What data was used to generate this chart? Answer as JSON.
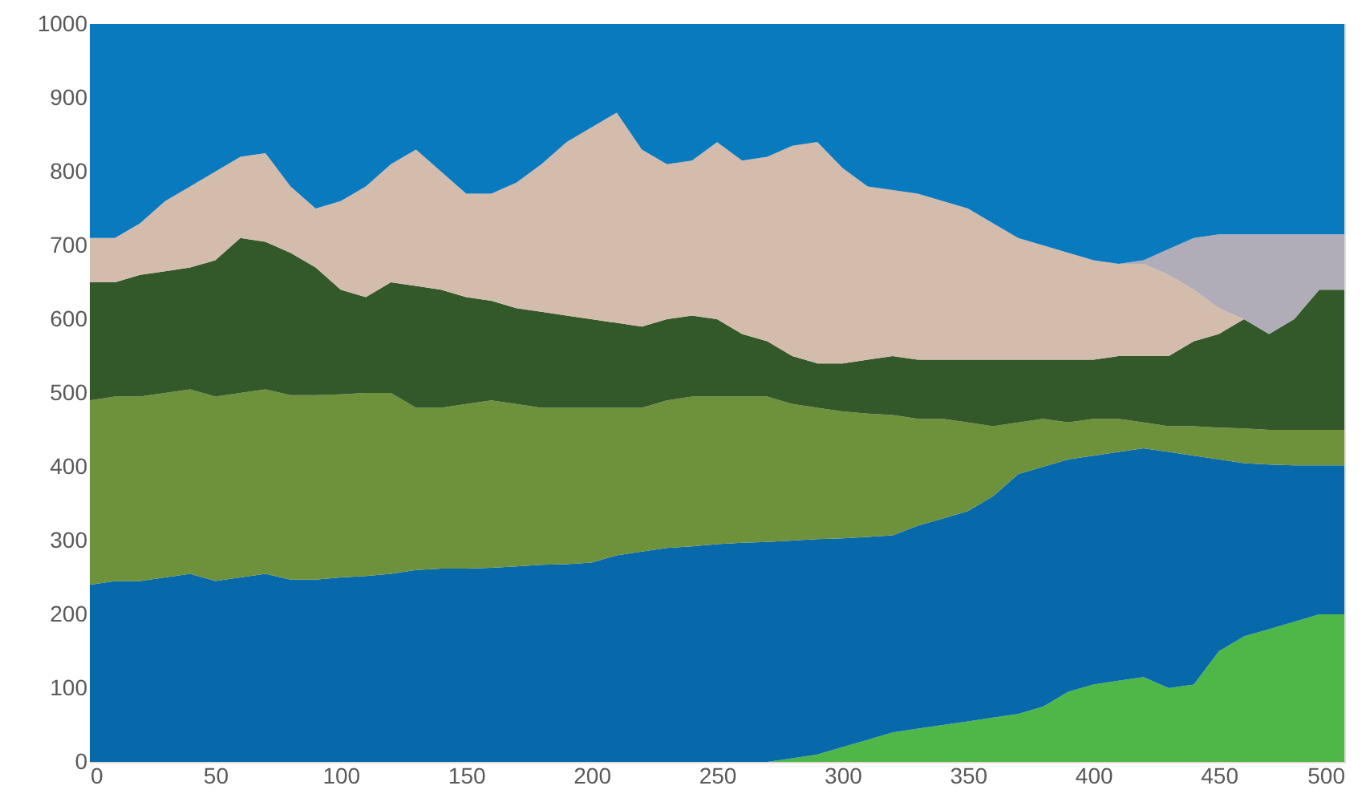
{
  "chart_data": {
    "type": "area",
    "stacked": true,
    "x": [
      0,
      10,
      20,
      30,
      40,
      50,
      60,
      70,
      80,
      90,
      100,
      110,
      120,
      130,
      140,
      150,
      160,
      170,
      180,
      190,
      200,
      210,
      220,
      230,
      240,
      250,
      260,
      270,
      280,
      290,
      300,
      310,
      320,
      330,
      340,
      350,
      360,
      370,
      380,
      390,
      400,
      410,
      420,
      430,
      440,
      450,
      460,
      470,
      480,
      490,
      500
    ],
    "xlim": [
      0,
      500
    ],
    "xticks": [
      0,
      50,
      100,
      150,
      200,
      250,
      300,
      350,
      400,
      450,
      500
    ],
    "ylim": [
      0,
      1000
    ],
    "yticks": [
      0,
      100,
      200,
      300,
      400,
      500,
      600,
      700,
      800,
      900,
      1000
    ],
    "series": [
      {
        "color": "#4fb748",
        "values": [
          0,
          0,
          0,
          0,
          0,
          0,
          0,
          0,
          0,
          0,
          0,
          0,
          0,
          0,
          0,
          0,
          0,
          0,
          0,
          0,
          0,
          0,
          0,
          0,
          0,
          0,
          0,
          0,
          5,
          10,
          20,
          30,
          40,
          45,
          50,
          55,
          60,
          65,
          75,
          95,
          105,
          110,
          115,
          100,
          105,
          150,
          170,
          180,
          190,
          200,
          200
        ]
      },
      {
        "color": "#0768aa",
        "values": [
          240,
          245,
          245,
          250,
          255,
          245,
          250,
          255,
          247,
          247,
          250,
          252,
          255,
          260,
          262,
          262,
          263,
          265,
          267,
          268,
          270,
          280,
          285,
          290,
          292,
          295,
          297,
          298,
          295,
          292,
          283,
          275,
          267,
          275,
          280,
          285,
          300,
          325,
          325,
          315,
          310,
          310,
          310,
          320,
          310,
          260,
          235,
          223,
          212,
          202,
          202
        ]
      },
      {
        "color": "#6e913c",
        "values": [
          250,
          250,
          250,
          250,
          250,
          250,
          250,
          250,
          250,
          250,
          248,
          248,
          245,
          220,
          218,
          223,
          227,
          220,
          213,
          212,
          210,
          200,
          195,
          200,
          203,
          200,
          198,
          197,
          185,
          178,
          172,
          167,
          163,
          145,
          135,
          120,
          95,
          70,
          65,
          50,
          50,
          45,
          35,
          35,
          40,
          43,
          47,
          47,
          48,
          48,
          48
        ]
      },
      {
        "color": "#33592a",
        "values": [
          160,
          155,
          165,
          165,
          165,
          185,
          210,
          200,
          193,
          173,
          142,
          130,
          150,
          165,
          160,
          145,
          135,
          130,
          130,
          125,
          120,
          115,
          110,
          110,
          110,
          105,
          85,
          75,
          65,
          60,
          65,
          73,
          80,
          80,
          80,
          85,
          90,
          85,
          80,
          85,
          80,
          85,
          90,
          95,
          115,
          127,
          148,
          130,
          150,
          190,
          190
        ]
      },
      {
        "color": "#d4bcad",
        "values": [
          60,
          60,
          70,
          95,
          110,
          120,
          110,
          120,
          90,
          80,
          120,
          150,
          160,
          185,
          160,
          140,
          145,
          170,
          200,
          235,
          260,
          285,
          240,
          210,
          210,
          240,
          235,
          250,
          285,
          300,
          265,
          235,
          225,
          225,
          215,
          205,
          185,
          165,
          155,
          145,
          135,
          125,
          125,
          110,
          70,
          35,
          0,
          0,
          0,
          0,
          0
        ]
      },
      {
        "color": "#b0adb8",
        "values": [
          0,
          0,
          0,
          0,
          0,
          0,
          0,
          0,
          0,
          0,
          0,
          0,
          0,
          0,
          0,
          0,
          0,
          0,
          0,
          0,
          0,
          0,
          0,
          0,
          0,
          0,
          0,
          0,
          0,
          0,
          0,
          0,
          0,
          0,
          0,
          0,
          0,
          0,
          0,
          0,
          0,
          0,
          5,
          35,
          70,
          100,
          115,
          135,
          115,
          75,
          75
        ]
      },
      {
        "color": "#0a7abf",
        "values": [
          290,
          290,
          270,
          240,
          220,
          200,
          180,
          175,
          220,
          250,
          240,
          220,
          190,
          170,
          200,
          230,
          230,
          215,
          190,
          160,
          140,
          120,
          170,
          190,
          185,
          160,
          185,
          180,
          165,
          160,
          195,
          220,
          225,
          230,
          240,
          250,
          270,
          290,
          300,
          310,
          320,
          325,
          320,
          305,
          290,
          285,
          285,
          285,
          285,
          285,
          285
        ]
      }
    ]
  }
}
